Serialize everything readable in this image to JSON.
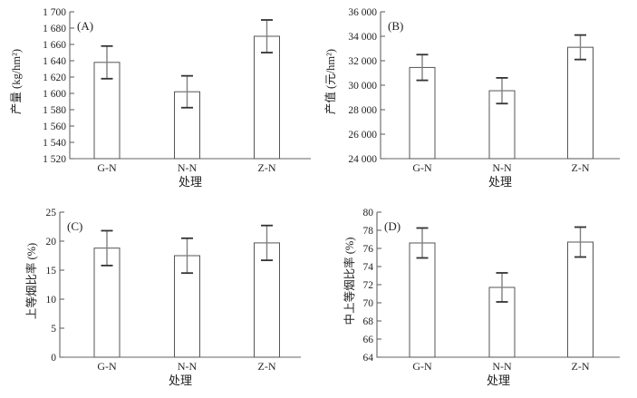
{
  "figure": {
    "x_title": "处理",
    "categories": [
      "G-N",
      "N-N",
      "Z-N"
    ]
  },
  "chart_data": [
    {
      "type": "bar",
      "panel_label": "(A)",
      "title": "",
      "ylabel": "产量 (kg/hm²)",
      "xlabel": "处理",
      "categories": [
        "G-N",
        "N-N",
        "Z-N"
      ],
      "values": [
        1638,
        1602,
        1670
      ],
      "errors": [
        20,
        19.5,
        20
      ],
      "ylim": [
        1520,
        1700
      ],
      "ytick_step": 20,
      "grid": false,
      "legend": null
    },
    {
      "type": "bar",
      "panel_label": "(B)",
      "title": "",
      "ylabel": "产值 (元/hm²)",
      "xlabel": "处理",
      "categories": [
        "G-N",
        "N-N",
        "Z-N"
      ],
      "values": [
        31450,
        29550,
        33100
      ],
      "errors": [
        1050,
        1050,
        1000
      ],
      "ylim": [
        24000,
        36000
      ],
      "ytick_step": 2000,
      "grid": false,
      "legend": null
    },
    {
      "type": "bar",
      "panel_label": "(C)",
      "title": "",
      "ylabel": "上等烟比率 (%)",
      "xlabel": "处理",
      "categories": [
        "G-N",
        "N-N",
        "Z-N"
      ],
      "values": [
        18.8,
        17.5,
        19.7
      ],
      "errors": [
        3.0,
        3.0,
        3.0
      ],
      "ylim": [
        0,
        25
      ],
      "ytick_step": 5,
      "grid": false,
      "legend": null
    },
    {
      "type": "bar",
      "panel_label": "(D)",
      "title": "",
      "ylabel": "中上等烟比率 (%)",
      "xlabel": "处理",
      "categories": [
        "G-N",
        "N-N",
        "Z-N"
      ],
      "values": [
        76.6,
        71.7,
        76.7
      ],
      "errors": [
        1.65,
        1.6,
        1.65
      ],
      "ylim": [
        64,
        80
      ],
      "ytick_step": 2,
      "grid": false,
      "legend": null
    }
  ]
}
